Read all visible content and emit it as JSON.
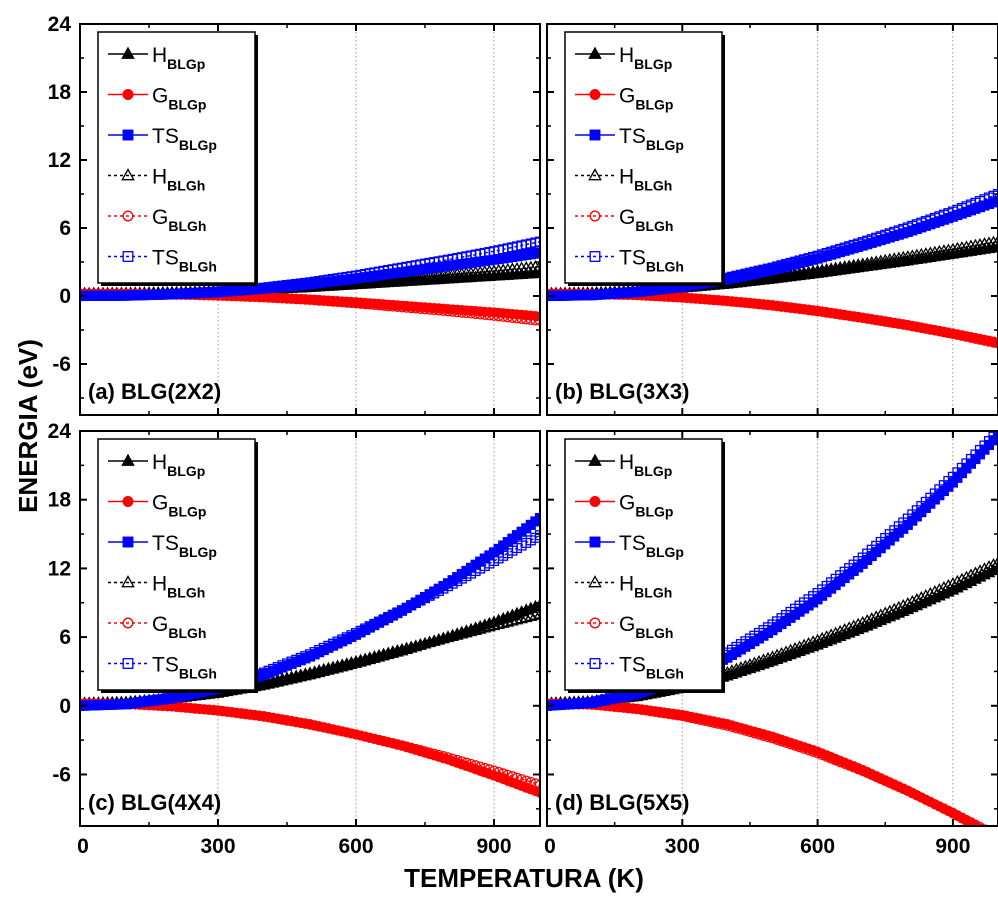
{
  "colors": {
    "H": "#000000",
    "G": "#ff0000",
    "TS": "#0000ff",
    "grid": "#9a9a9a",
    "frame": "#000000"
  },
  "chart_data": {
    "type": "line",
    "xlabel": "TEMPERATURA (K)",
    "ylabel": "ENERGIA (eV)",
    "xlim": [
      0,
      1000
    ],
    "ylim": [
      -10.5,
      24
    ],
    "xticks": [
      0,
      300,
      600,
      900
    ],
    "yticks": [
      -6,
      0,
      6,
      12,
      18,
      24
    ],
    "grid": "vertical dotted at 300, 600, 900",
    "legend_position": "top-left",
    "legend": [
      {
        "main": "H",
        "sub": "BLGp",
        "key": "H",
        "marker": "triangle",
        "filled": true,
        "dash": false
      },
      {
        "main": "G",
        "sub": "BLGp",
        "key": "G",
        "marker": "circle",
        "filled": true,
        "dash": false
      },
      {
        "main": "TS",
        "sub": "BLGp",
        "key": "TS",
        "marker": "square",
        "filled": true,
        "dash": false
      },
      {
        "main": "H",
        "sub": "BLGh",
        "key": "H",
        "marker": "triangle",
        "filled": false,
        "dash": true
      },
      {
        "main": "G",
        "sub": "BLGh",
        "key": "G",
        "marker": "circle",
        "filled": false,
        "dash": true
      },
      {
        "main": "TS",
        "sub": "BLGh",
        "key": "TS",
        "marker": "square",
        "filled": false,
        "dash": true
      }
    ],
    "x": [
      0,
      100,
      200,
      300,
      400,
      500,
      600,
      700,
      800,
      900,
      1000
    ],
    "panels": [
      {
        "label": "(a) BLG(2X2)",
        "series": [
          {
            "name": "H_BLGp",
            "values": [
              0.2,
              0.22,
              0.28,
              0.38,
              0.55,
              0.75,
              1.0,
              1.25,
              1.5,
              1.75,
              2.0
            ]
          },
          {
            "name": "G_BLGp",
            "values": [
              0.2,
              0.19,
              0.14,
              0.05,
              -0.1,
              -0.3,
              -0.55,
              -0.85,
              -1.15,
              -1.45,
              -1.8
            ]
          },
          {
            "name": "TS_BLGp",
            "values": [
              0.0,
              0.03,
              0.14,
              0.33,
              0.65,
              1.05,
              1.55,
              2.1,
              2.65,
              3.2,
              3.8
            ]
          },
          {
            "name": "H_BLGh",
            "values": [
              0.2,
              0.23,
              0.3,
              0.42,
              0.6,
              0.85,
              1.15,
              1.5,
              1.85,
              2.2,
              2.6
            ]
          },
          {
            "name": "G_BLGh",
            "values": [
              0.2,
              0.19,
              0.13,
              0.03,
              -0.13,
              -0.35,
              -0.65,
              -1.0,
              -1.35,
              -1.75,
              -2.2
            ]
          },
          {
            "name": "TS_BLGh",
            "values": [
              0.0,
              0.04,
              0.17,
              0.39,
              0.73,
              1.2,
              1.8,
              2.5,
              3.2,
              3.95,
              4.8
            ]
          }
        ]
      },
      {
        "label": "(b) BLG(3X3)",
        "series": [
          {
            "name": "H_BLGp",
            "values": [
              0.2,
              0.25,
              0.42,
              0.7,
              1.05,
              1.5,
              2.0,
              2.55,
              3.1,
              3.7,
              4.3
            ]
          },
          {
            "name": "G_BLGp",
            "values": [
              0.2,
              0.18,
              0.08,
              -0.12,
              -0.42,
              -0.8,
              -1.3,
              -1.9,
              -2.55,
              -3.3,
              -4.1
            ]
          },
          {
            "name": "TS_BLGp",
            "values": [
              0.0,
              0.07,
              0.34,
              0.82,
              1.47,
              2.3,
              3.3,
              4.45,
              5.65,
              7.0,
              8.4
            ]
          },
          {
            "name": "H_BLGh",
            "values": [
              0.2,
              0.26,
              0.45,
              0.75,
              1.15,
              1.65,
              2.2,
              2.8,
              3.45,
              4.1,
              4.8
            ]
          },
          {
            "name": "G_BLGh",
            "values": [
              0.2,
              0.17,
              0.07,
              -0.15,
              -0.46,
              -0.85,
              -1.35,
              -1.95,
              -2.6,
              -3.35,
              -4.2
            ]
          },
          {
            "name": "TS_BLGh",
            "values": [
              0.0,
              0.09,
              0.38,
              0.9,
              1.61,
              2.5,
              3.55,
              4.75,
              6.05,
              7.45,
              9.0
            ]
          }
        ]
      },
      {
        "label": "(c) BLG(4X4)",
        "series": [
          {
            "name": "H_BLGp",
            "values": [
              0.2,
              0.28,
              0.6,
              1.1,
              1.8,
              2.7,
              3.7,
              4.8,
              6.0,
              7.3,
              8.8
            ]
          },
          {
            "name": "G_BLGp",
            "values": [
              0.2,
              0.15,
              -0.05,
              -0.4,
              -0.9,
              -1.6,
              -2.5,
              -3.5,
              -4.7,
              -6.1,
              -7.6
            ]
          },
          {
            "name": "TS_BLGp",
            "values": [
              0.0,
              0.13,
              0.65,
              1.5,
              2.7,
              4.3,
              6.2,
              8.3,
              10.7,
              13.4,
              16.4
            ]
          },
          {
            "name": "H_BLGh",
            "values": [
              0.2,
              0.3,
              0.65,
              1.2,
              1.95,
              2.85,
              3.85,
              4.9,
              5.95,
              7.0,
              8.0
            ]
          },
          {
            "name": "G_BLGh",
            "values": [
              0.2,
              0.15,
              -0.07,
              -0.43,
              -0.95,
              -1.65,
              -2.5,
              -3.45,
              -4.5,
              -5.65,
              -6.9
            ]
          },
          {
            "name": "TS_BLGh",
            "values": [
              0.0,
              0.15,
              0.72,
              1.63,
              2.9,
              4.5,
              6.35,
              8.35,
              10.45,
              12.65,
              14.9
            ]
          }
        ]
      },
      {
        "label": "(d) BLG(5X5)",
        "series": [
          {
            "name": "H_BLGp",
            "values": [
              0.2,
              0.35,
              0.8,
              1.55,
              2.6,
              3.9,
              5.3,
              6.8,
              8.4,
              10.1,
              12.0
            ]
          },
          {
            "name": "G_BLGp",
            "values": [
              0.2,
              0.1,
              -0.25,
              -0.8,
              -1.6,
              -2.7,
              -4.0,
              -5.6,
              -7.4,
              -9.4,
              -11.6
            ]
          },
          {
            "name": "TS_BLGp",
            "values": [
              0.0,
              0.25,
              1.05,
              2.35,
              4.2,
              6.6,
              9.3,
              12.4,
              15.8,
              19.5,
              23.6
            ]
          },
          {
            "name": "H_BLGh",
            "values": [
              0.2,
              0.38,
              0.9,
              1.75,
              2.9,
              4.25,
              5.7,
              7.25,
              8.9,
              10.65,
              12.5
            ]
          },
          {
            "name": "G_BLGh",
            "values": [
              0.2,
              0.1,
              -0.3,
              -0.9,
              -1.75,
              -2.85,
              -4.15,
              -5.7,
              -7.45,
              -9.35,
              -11.4
            ]
          },
          {
            "name": "TS_BLGh",
            "values": [
              0.0,
              0.3,
              1.2,
              2.65,
              4.65,
              7.1,
              9.85,
              12.95,
              16.35,
              20.0,
              23.9
            ]
          }
        ]
      }
    ]
  }
}
